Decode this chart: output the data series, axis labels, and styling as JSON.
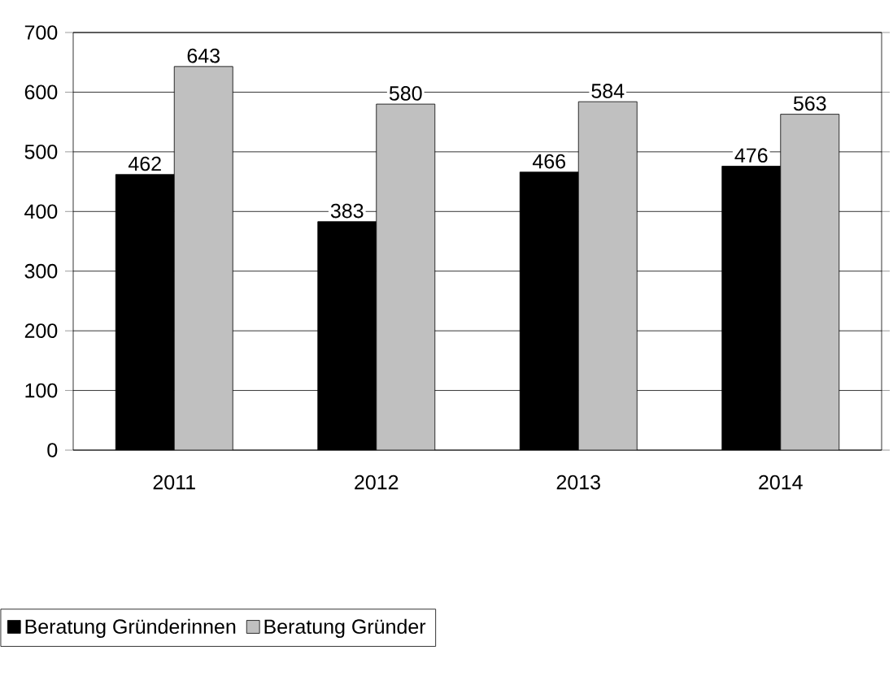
{
  "chart_data": {
    "type": "bar",
    "categories": [
      "2011",
      "2012",
      "2013",
      "2014"
    ],
    "series": [
      {
        "name": "Beratung Gründerinnen",
        "color": "#000000",
        "values": [
          462,
          383,
          466,
          476
        ]
      },
      {
        "name": "Beratung Gründer",
        "color": "#c0c0c0",
        "values": [
          643,
          580,
          584,
          563
        ]
      }
    ],
    "ylim": [
      0,
      700
    ],
    "yticks": [
      0,
      100,
      200,
      300,
      400,
      500,
      600,
      700
    ],
    "grid": "y",
    "legend": "bottom",
    "data_labels": true
  }
}
